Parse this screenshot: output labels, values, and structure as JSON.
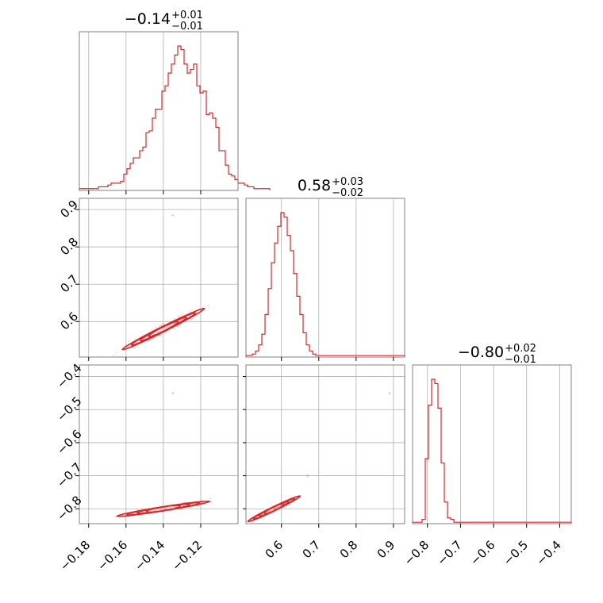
{
  "colors": {
    "accent": "#d62728",
    "grid": "#b0b0b0",
    "frame": "#808080"
  },
  "chart_data": {
    "type": "corner",
    "params": [
      {
        "title": {
          "main": "−0.14",
          "plus": "+0.01",
          "minus": "−0.01"
        },
        "range": [
          -0.185,
          -0.1
        ],
        "ticks": [
          -0.18,
          -0.16,
          -0.14,
          -0.12
        ],
        "tick_labels": [
          "−0.18",
          "−0.16",
          "−0.14",
          "−0.12"
        ]
      },
      {
        "title": {
          "main": "0.58",
          "plus": "+0.03",
          "minus": "−0.02"
        },
        "range": [
          0.505,
          0.93
        ],
        "ticks": [
          0.6,
          0.7,
          0.8,
          0.9
        ],
        "tick_labels": [
          "0.6",
          "0.7",
          "0.8",
          "0.9"
        ]
      },
      {
        "title": {
          "main": "−0.80",
          "plus": "+0.02",
          "minus": "−0.01"
        },
        "range": [
          -0.845,
          -0.365
        ],
        "ticks": [
          -0.8,
          -0.7,
          -0.6,
          -0.5,
          -0.4
        ],
        "tick_labels": [
          "−0.8",
          "−0.7",
          "−0.6",
          "−0.5",
          "−0.4"
        ]
      }
    ],
    "histograms": [
      {
        "param": 0,
        "edges_start": -0.185,
        "bin_width": 0.0017,
        "counts": [
          1,
          1,
          1,
          1,
          1,
          1,
          2,
          2,
          2,
          3,
          4,
          4,
          4,
          5,
          9,
          12,
          15,
          18,
          18,
          22,
          24,
          32,
          33,
          40,
          45,
          45,
          55,
          58,
          65,
          70,
          75,
          80,
          78,
          70,
          65,
          67,
          70,
          58,
          54,
          55,
          42,
          43,
          40,
          35,
          22,
          22,
          14,
          9,
          8,
          6,
          4,
          4,
          3,
          2,
          2,
          1,
          1,
          1,
          1,
          1
        ]
      },
      {
        "param": 1,
        "edges_start": 0.505,
        "bin_width": 0.0085,
        "counts": [
          1,
          1,
          2,
          4,
          8,
          15,
          28,
          45,
          62,
          75,
          86,
          95,
          92,
          80,
          70,
          55,
          40,
          28,
          16,
          8,
          4,
          2,
          1,
          1,
          1,
          1,
          1,
          1,
          1,
          1,
          1,
          1,
          1,
          1,
          1,
          1,
          1,
          1,
          1,
          1,
          1,
          1,
          1,
          1,
          1,
          1,
          1,
          1,
          1,
          1
        ]
      },
      {
        "param": 2,
        "edges_start": -0.845,
        "bin_width": 0.0096,
        "counts": [
          1,
          1,
          1,
          3,
          45,
          82,
          100,
          97,
          80,
          42,
          15,
          4,
          3,
          1,
          1,
          1,
          1,
          1,
          1,
          1,
          1,
          1,
          1,
          1,
          1,
          1,
          1,
          1,
          1,
          1,
          1,
          1,
          1,
          1,
          1,
          1,
          1,
          1,
          1,
          1,
          1,
          1,
          1,
          1,
          1,
          1,
          1,
          1,
          1,
          1
        ]
      }
    ],
    "pairs": [
      {
        "x_param": 0,
        "y_param": 1,
        "center": [
          -0.14,
          0.58
        ],
        "slope": 2.5,
        "x_half_range": 0.022,
        "y_half_width": 0.01,
        "outliers": [
          [
            -0.135,
            0.885
          ]
        ]
      },
      {
        "x_param": 0,
        "y_param": 2,
        "center": [
          -0.14,
          -0.8
        ],
        "slope": 0.9,
        "x_half_range": 0.025,
        "y_half_width": 0.006,
        "outliers": [
          [
            -0.135,
            -0.45
          ]
        ]
      },
      {
        "x_param": 1,
        "y_param": 2,
        "center": [
          0.58,
          -0.8
        ],
        "slope": 0.55,
        "x_half_range": 0.07,
        "y_half_width": 0.005,
        "outliers": [
          [
            0.89,
            -0.45
          ],
          [
            0.67,
            -0.7
          ]
        ]
      }
    ],
    "grid": true
  }
}
